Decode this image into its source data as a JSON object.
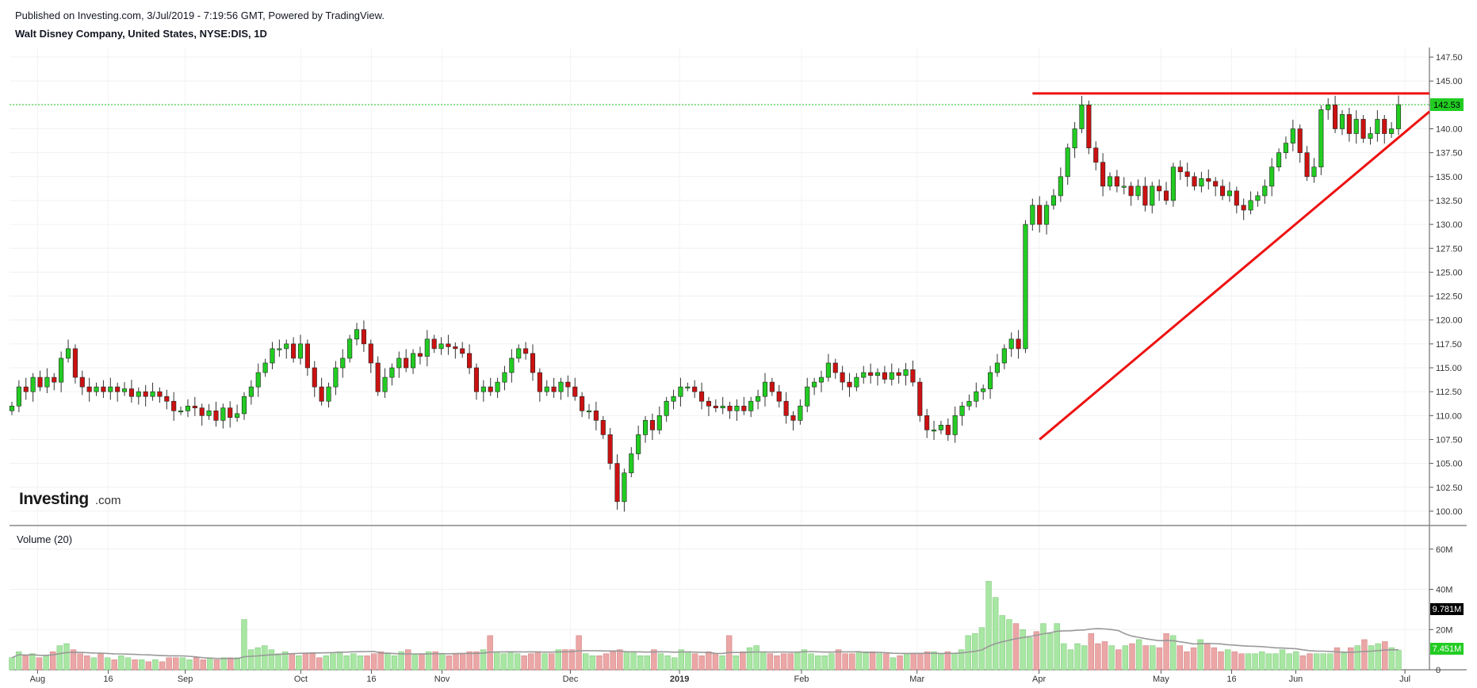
{
  "header": {
    "published": "Published on Investing.com, 3/Jul/2019 - 7:19:56 GMT, Powered by TradingView.",
    "symbol": "Walt Disney Company, United States, NYSE:DIS, 1D"
  },
  "logo": {
    "main": "Investing",
    "suffix": ".com"
  },
  "colors": {
    "up": "#22cc22",
    "down": "#cc1111",
    "trendline": "#ee1111",
    "vol_up": "#a8e6a3",
    "vol_down": "#eba6a6",
    "ma": "#999999",
    "last_price_bg": "#22cc22",
    "vol_last_bg": "#000000"
  },
  "chart_data": [
    {
      "type": "candlestick",
      "ylim": [
        98.5,
        148.5
      ],
      "y_ticks": [
        "147.50",
        "145.00",
        "142.50",
        "140.00",
        "137.50",
        "135.00",
        "132.50",
        "130.00",
        "127.50",
        "125.00",
        "122.50",
        "120.00",
        "117.50",
        "115.00",
        "112.50",
        "110.00",
        "107.50",
        "105.00",
        "102.50",
        "100.00"
      ],
      "x_ticks": [
        "Aug",
        "16",
        "Sep",
        "Oct",
        "16",
        "Nov",
        "Dec",
        "2019",
        "Feb",
        "Mar",
        "Apr",
        "May",
        "16",
        "Jun",
        "Jul"
      ],
      "last_price": "142.53",
      "close": [
        111,
        113,
        112.5,
        114,
        113,
        114,
        113.5,
        116,
        117,
        114,
        113,
        112.5,
        113,
        112.5,
        113,
        112.5,
        112.8,
        112,
        112.5,
        112,
        112.5,
        112,
        111.5,
        110.5,
        110.5,
        111,
        110.8,
        110,
        110.5,
        109.5,
        110.8,
        109.8,
        110.2,
        112,
        113,
        114.5,
        115.5,
        117,
        117,
        117.5,
        116,
        117.5,
        115,
        113,
        111.5,
        113,
        115,
        116,
        118,
        119,
        117.5,
        115.5,
        112.5,
        114,
        115,
        116,
        115,
        116.5,
        116.2,
        118,
        117,
        117.5,
        117.2,
        117,
        116.5,
        115,
        112.5,
        113,
        112.5,
        113.5,
        114.5,
        116,
        117,
        116.5,
        114.5,
        112.5,
        113,
        112.5,
        113.5,
        113,
        112,
        110.5,
        110.5,
        109.5,
        108,
        105,
        101,
        104,
        106,
        108,
        109.5,
        108.5,
        110,
        111.5,
        112,
        113,
        113,
        112.5,
        111.5,
        111,
        110.8,
        111,
        110.5,
        111,
        110.5,
        111.5,
        112,
        113.5,
        112.5,
        111.5,
        110,
        109.5,
        111,
        113,
        113.5,
        114,
        115.5,
        114.5,
        113.5,
        113,
        114,
        114.5,
        114.2,
        114.5,
        113.8,
        114.5,
        114.2,
        114.8,
        113.5,
        110,
        108.5,
        108.5,
        109,
        108,
        110,
        111,
        111.5,
        112.5,
        112.8,
        114.5,
        115.5,
        117,
        118,
        117,
        130,
        132,
        130,
        132,
        133,
        135,
        138,
        140,
        142.5,
        138,
        136.5,
        134,
        135,
        134,
        134,
        133,
        134,
        132,
        134,
        133.5,
        132.5,
        136,
        135.5,
        135,
        134,
        134.8,
        134.5,
        134,
        133,
        133.5,
        132,
        131.5,
        132.5,
        133,
        134,
        136,
        137.5,
        138.5,
        140,
        137.5,
        135,
        136,
        142,
        142.5,
        140,
        141.5,
        139.5,
        141,
        139,
        139.5,
        141,
        139.5,
        140,
        142.53
      ]
    },
    {
      "type": "bar",
      "title": "Volume (20)",
      "ylim": [
        0,
        67
      ],
      "y_ticks": [
        "60M",
        "40M",
        "20M",
        "0"
      ],
      "last_volume": "9.781M",
      "ma_value": "7.451M",
      "values": [
        6,
        9,
        7,
        8,
        6,
        7,
        9,
        12,
        13,
        10,
        8,
        7,
        6,
        8,
        6,
        5,
        7,
        6,
        5,
        5,
        4,
        5,
        4,
        6,
        6,
        6,
        5,
        6,
        5,
        6,
        5,
        6,
        6,
        6,
        25,
        10,
        11,
        12,
        10,
        8,
        9,
        8,
        7,
        8,
        8,
        6,
        7,
        8,
        9,
        7,
        8,
        7,
        7,
        8,
        9,
        8,
        7,
        9,
        10,
        8,
        8,
        9,
        9,
        8,
        7,
        8,
        8,
        9,
        9,
        10,
        17,
        9,
        8,
        9,
        8,
        7,
        8,
        9,
        8,
        8,
        10,
        10,
        10,
        17,
        8,
        7,
        7,
        8,
        9,
        10,
        9,
        9,
        7,
        7,
        10,
        8,
        7,
        6,
        10,
        9,
        8,
        7,
        9,
        8,
        7,
        17,
        7,
        9,
        11,
        12,
        9,
        8,
        7,
        8,
        8,
        9,
        10,
        8,
        7,
        7,
        8,
        10,
        8,
        8,
        9,
        9,
        9,
        8,
        8,
        6,
        7,
        8,
        8,
        8,
        9,
        9,
        8,
        9,
        8,
        10,
        17,
        18,
        21,
        44,
        36,
        27,
        25,
        23,
        20,
        16,
        19,
        23,
        18,
        23,
        13,
        10,
        13,
        12,
        18,
        13,
        14,
        12,
        10,
        12,
        13,
        15,
        12,
        12,
        11,
        18,
        17,
        12,
        9,
        11,
        15,
        13,
        11,
        9,
        10,
        9,
        8,
        8,
        8,
        9,
        8,
        8,
        10,
        8,
        9,
        7,
        8,
        8,
        8,
        8,
        11,
        9,
        11,
        12,
        15,
        12,
        13,
        14,
        11,
        9.781
      ]
    }
  ]
}
